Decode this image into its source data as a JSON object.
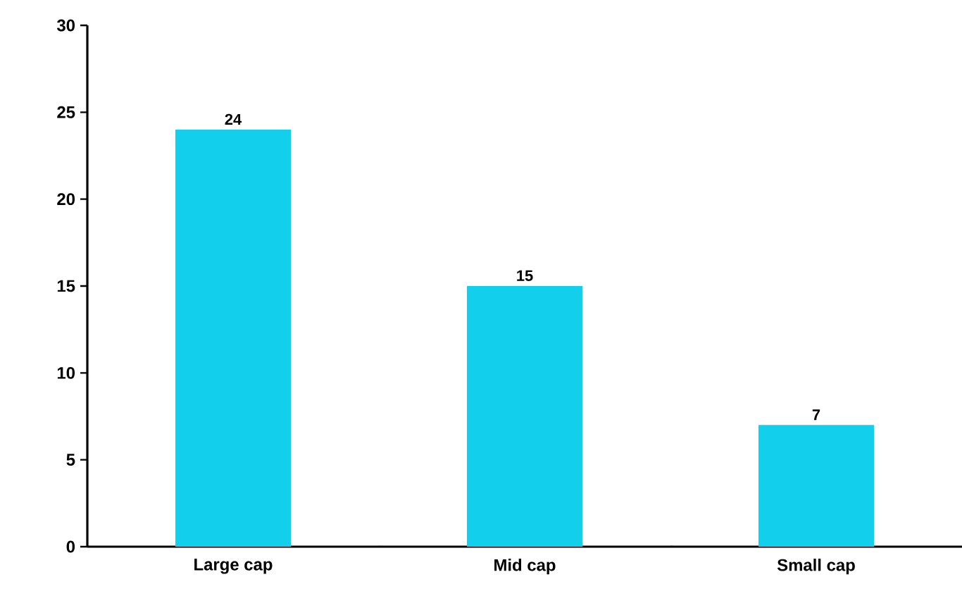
{
  "chart_data": {
    "type": "bar",
    "categories": [
      "Large cap",
      "Mid cap",
      "Small cap"
    ],
    "values": [
      24,
      15,
      7
    ],
    "color": "#12d0ec",
    "ylim": [
      0,
      30
    ],
    "yticks": [
      0,
      5,
      10,
      15,
      20,
      25,
      30
    ],
    "data_labels": true,
    "grid": false
  }
}
